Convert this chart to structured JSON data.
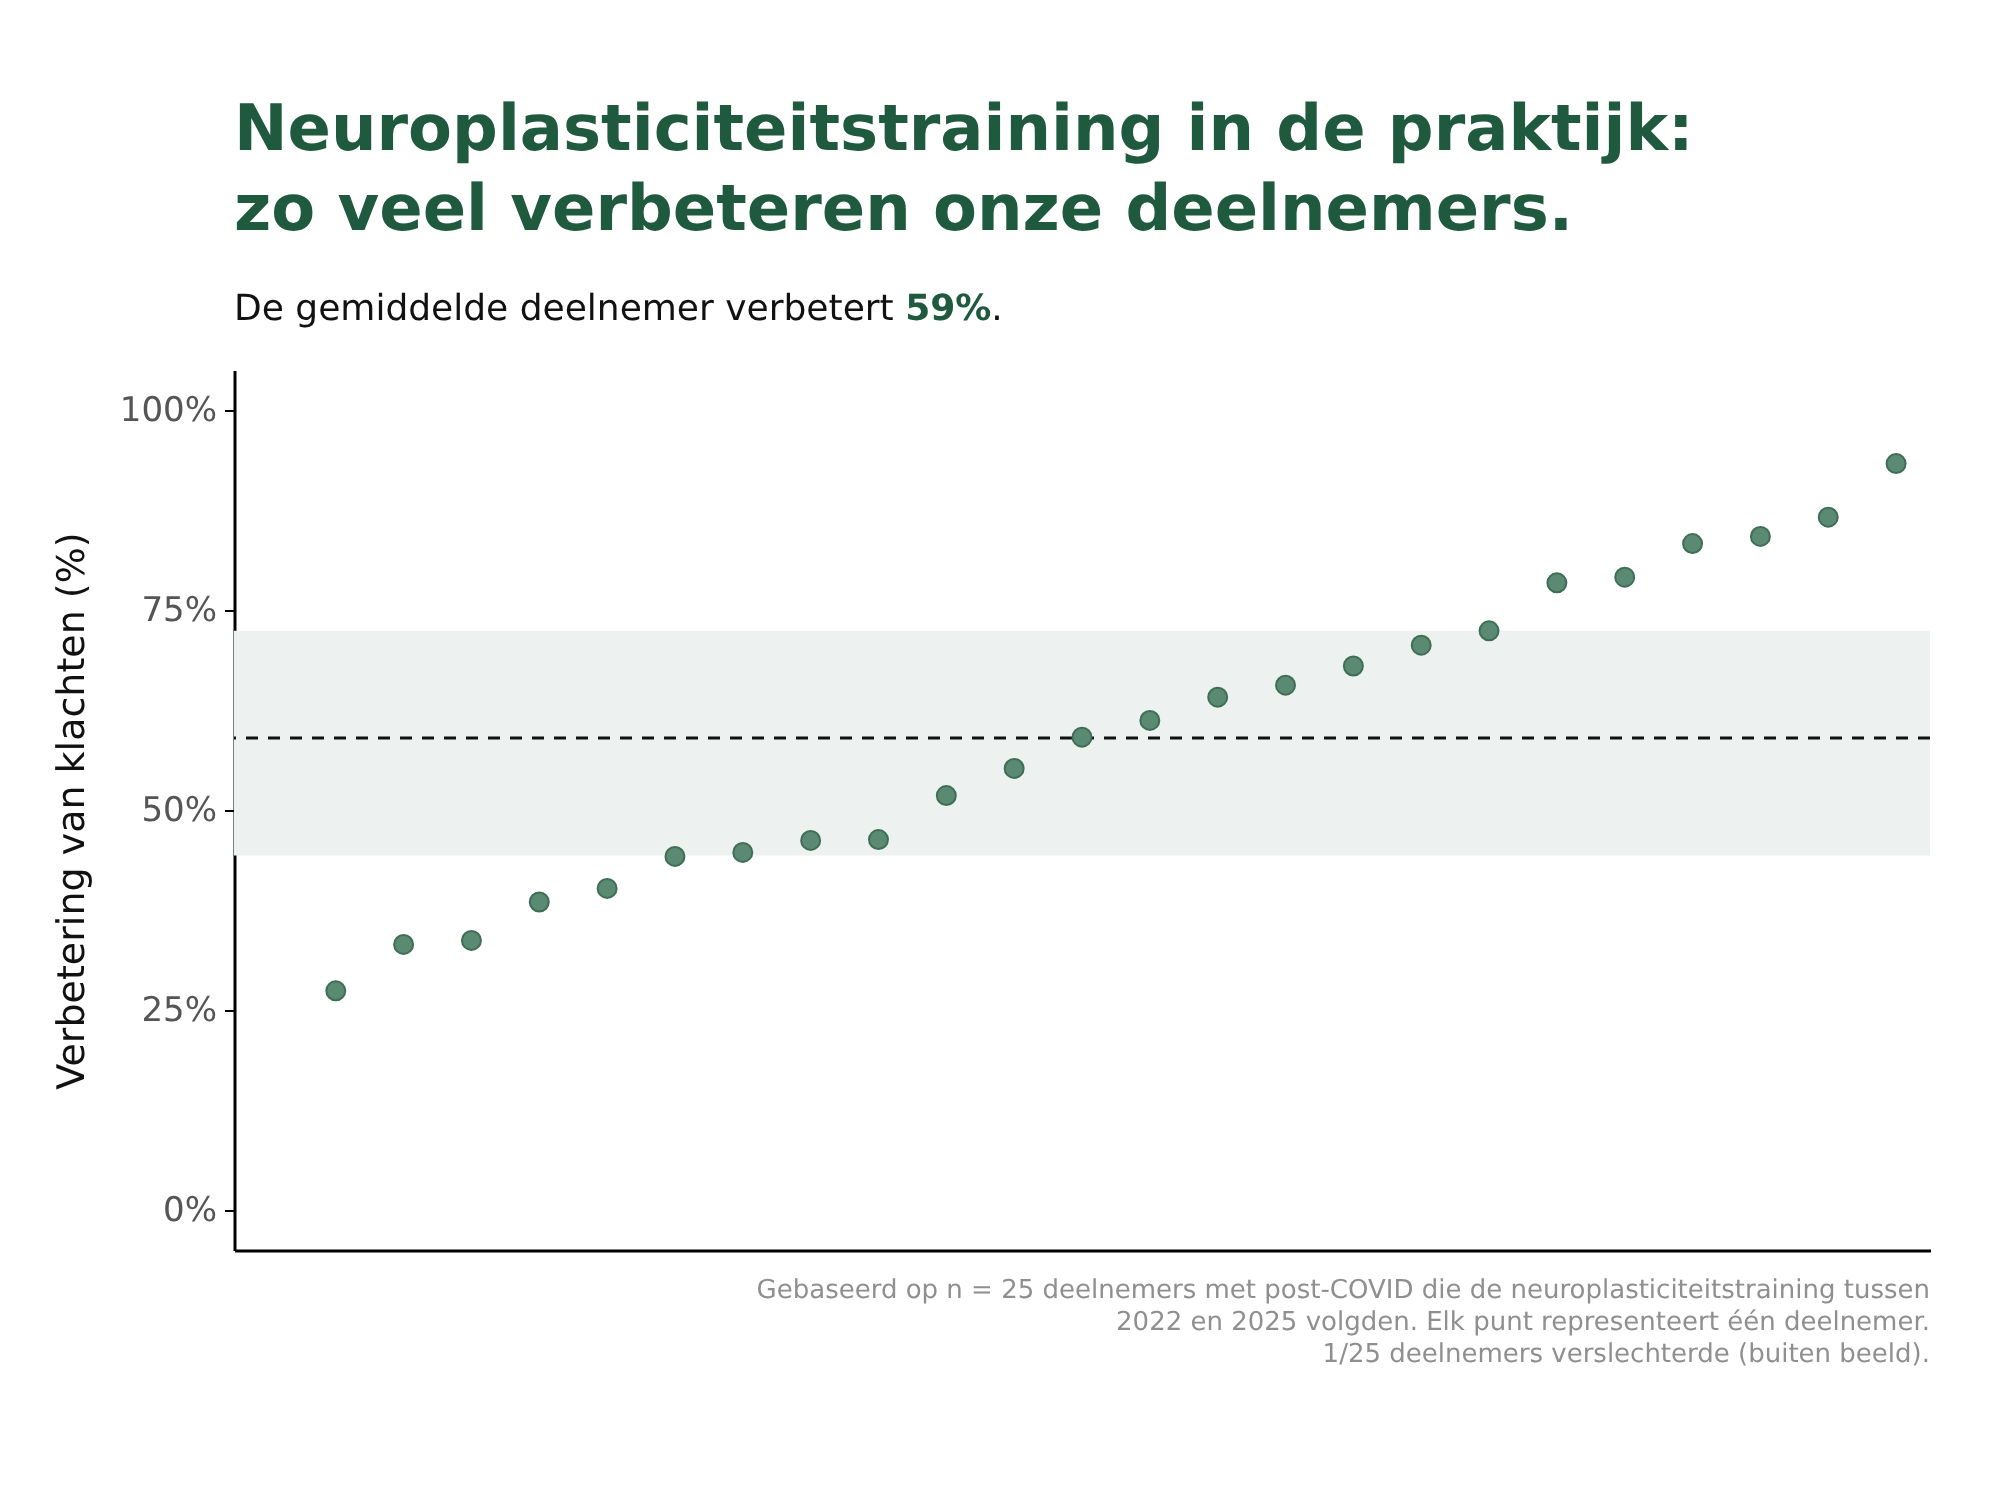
{
  "chart_data": {
    "type": "scatter",
    "title": "Neuroplasticiteitstraining in de praktijk:\nzo veel verbeteren onze deelnemers.",
    "subtitle": "De gemiddelde deelnemer verbetert 59%.",
    "ylabel": "Verbetering van klachten (%)",
    "categories": [
      null,
      null,
      null,
      null,
      null,
      null,
      null,
      null,
      null,
      null,
      null,
      null,
      null,
      null,
      null,
      null,
      null,
      null,
      null,
      null,
      null,
      null,
      null,
      null,
      null
    ],
    "series": [
      {
        "color": "#5b8a72",
        "values": [
          null,
          27.4,
          33.2,
          33.7,
          38.5,
          40.2,
          44.2,
          44.7,
          46.2,
          46.3,
          51.8,
          55.2,
          59.1,
          61.2,
          64.1,
          65.6,
          68.0,
          70.6,
          72.4,
          78.4,
          79.1,
          83.3,
          84.2,
          86.6,
          93.3
        ]
      }
    ],
    "ylim": [
      -5,
      105
    ],
    "yticks": [
      {
        "value": 0,
        "label": "0%"
      },
      {
        "value": 25,
        "label": "25%"
      },
      {
        "value": 50,
        "label": "50%"
      },
      {
        "value": 75,
        "label": "75%"
      },
      {
        "value": 100,
        "label": "100%"
      }
    ],
    "ref_lines": [
      {
        "axis": "y",
        "value": 59,
        "color": "#111111",
        "line_style": "dashed"
      }
    ],
    "bands": [
      {
        "axis": "y",
        "from": 44.3,
        "to": 72.4,
        "color": "#edf1ef"
      }
    ],
    "grid": false,
    "marker": "circle",
    "annotations": [
      "Gebaseerd op n = 25 deelnemers met post-COVID die de neuroplasticiteitstraining tussen\n2022 en 2025 volgden. Elk punt representeert één deelnemer.\n1/25 deelnemers verslechterde (buiten beeld)."
    ]
  }
}
